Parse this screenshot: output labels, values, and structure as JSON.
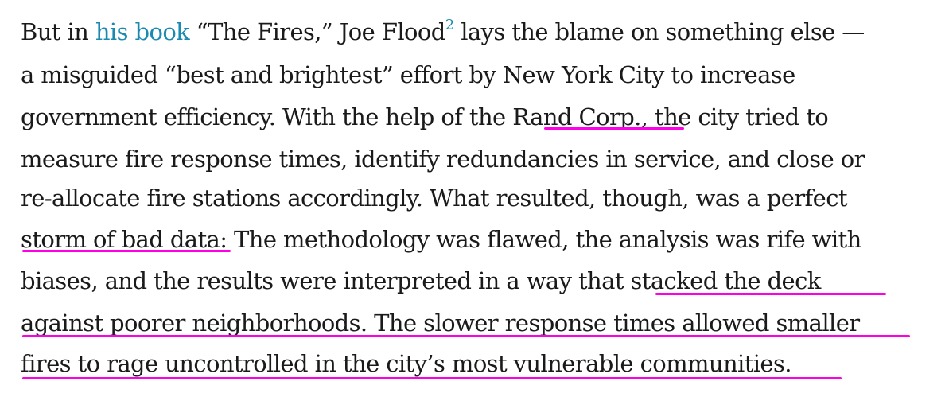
{
  "paragraph": {
    "lines": [
      {
        "before": "But in ",
        "link": "his book",
        "after": " “The Fires,” Joe Flood",
        "footnote": "2",
        "tail": " lays the blame on something else —"
      },
      {
        "text": "a misguided “best and brightest” effort by New York City to increase"
      },
      {
        "text": "government efficiency. With the help of the Rand Corp., the city tried to"
      },
      {
        "text": "measure fire response times, identify redundancies in service, and close or"
      },
      {
        "text": "re-allocate fire stations accordingly. What resulted, though, was a perfect"
      },
      {
        "text": "storm of bad data: The methodology was flawed, the analysis was rife with"
      },
      {
        "text": "biases, and the results were interpreted in a way that stacked the deck"
      },
      {
        "text": "against poorer neighborhoods. The slower response times allowed smaller"
      },
      {
        "text": "fires to rage uncontrolled in the city’s most vulnerable communities."
      }
    ]
  },
  "highlight": {
    "color": "#ff00e6"
  },
  "link_color": "#1a8ab0"
}
